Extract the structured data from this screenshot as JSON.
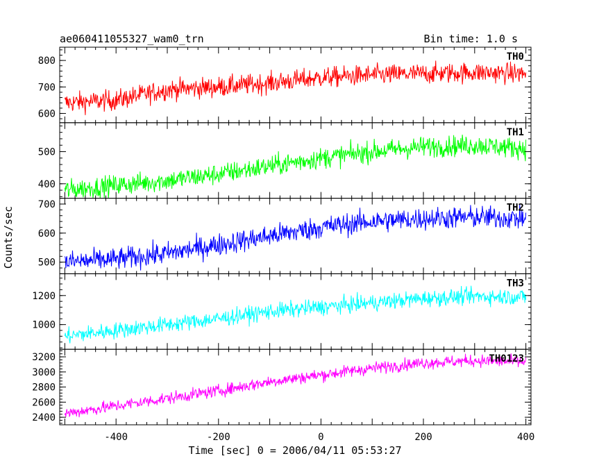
{
  "chart_data": {
    "type": "line",
    "title": "ae060411055327_wam0_trn",
    "subtitle": "Bin time: 1.0 s",
    "xlabel": "Time [sec] 0 = 2006/04/11 05:53:27",
    "ylabel": "Counts/sec",
    "xlim": [
      -510,
      410
    ],
    "x_ticks": [
      -400,
      -200,
      0,
      200,
      400
    ],
    "grid": false,
    "panels": [
      {
        "name": "TH0",
        "color": "#ff0000",
        "ylim": [
          565,
          850
        ],
        "y_ticks": [
          600,
          700,
          800
        ],
        "trend": [
          [
            -500,
            640
          ],
          [
            -400,
            650
          ],
          [
            -300,
            690
          ],
          [
            -200,
            700
          ],
          [
            -100,
            715
          ],
          [
            0,
            735
          ],
          [
            100,
            745
          ],
          [
            200,
            750
          ],
          [
            300,
            755
          ],
          [
            400,
            750
          ]
        ],
        "noise": 38
      },
      {
        "name": "TH1",
        "color": "#00ff00",
        "ylim": [
          355,
          590
        ],
        "y_ticks": [
          400,
          500
        ],
        "trend": [
          [
            -500,
            380
          ],
          [
            -400,
            395
          ],
          [
            -300,
            410
          ],
          [
            -200,
            430
          ],
          [
            -100,
            455
          ],
          [
            0,
            480
          ],
          [
            100,
            500
          ],
          [
            200,
            515
          ],
          [
            300,
            520
          ],
          [
            400,
            510
          ]
        ],
        "noise": 32
      },
      {
        "name": "TH2",
        "color": "#0000ff",
        "ylim": [
          460,
          720
        ],
        "y_ticks": [
          500,
          600,
          700
        ],
        "trend": [
          [
            -500,
            500
          ],
          [
            -400,
            510
          ],
          [
            -300,
            530
          ],
          [
            -200,
            560
          ],
          [
            -100,
            590
          ],
          [
            0,
            620
          ],
          [
            100,
            640
          ],
          [
            200,
            650
          ],
          [
            300,
            655
          ],
          [
            400,
            650
          ]
        ],
        "noise": 38
      },
      {
        "name": "TH3",
        "color": "#00ffff",
        "ylim": [
          830,
          1350
        ],
        "y_ticks": [
          1000,
          1200
        ],
        "trend": [
          [
            -500,
            920
          ],
          [
            -400,
            960
          ],
          [
            -300,
            1000
          ],
          [
            -200,
            1040
          ],
          [
            -100,
            1090
          ],
          [
            0,
            1120
          ],
          [
            100,
            1150
          ],
          [
            200,
            1180
          ],
          [
            300,
            1195
          ],
          [
            400,
            1190
          ]
        ],
        "noise": 55
      },
      {
        "name": "TH0123",
        "color": "#ff00ff",
        "ylim": [
          2300,
          3300
        ],
        "y_ticks": [
          2400,
          2600,
          2800,
          3000,
          3200
        ],
        "trend": [
          [
            -500,
            2450
          ],
          [
            -400,
            2550
          ],
          [
            -300,
            2650
          ],
          [
            -200,
            2750
          ],
          [
            -100,
            2870
          ],
          [
            0,
            2960
          ],
          [
            100,
            3050
          ],
          [
            200,
            3120
          ],
          [
            300,
            3150
          ],
          [
            400,
            3130
          ]
        ],
        "noise": 80
      }
    ]
  }
}
